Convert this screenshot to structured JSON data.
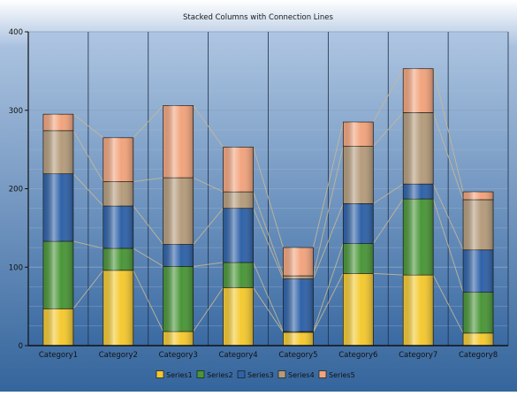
{
  "colors": {
    "background_top": "#ffffff",
    "background_mid": "#a9c1df",
    "background_bottom": "#34659c",
    "plot_top": "#aec6e2",
    "plot_bottom": "#3a6aa2",
    "series1": "#f4c930",
    "series2": "#4a9638",
    "series3": "#2f62a8",
    "series4": "#b59c7c",
    "series5": "#f2a47d",
    "connection_line": "#c8b993"
  },
  "chart_data": {
    "type": "bar",
    "stacked": true,
    "connection_lines": true,
    "title": "Stacked Columns with Connection Lines",
    "xlabel": "",
    "ylabel": "",
    "ylim": [
      0,
      400
    ],
    "yticks": [
      "0",
      "100",
      "200",
      "300",
      "400"
    ],
    "grid": true,
    "legend_position": "bottom",
    "categories": [
      "Category1",
      "Category2",
      "Category3",
      "Category4",
      "Category5",
      "Category6",
      "Category7",
      "Category8"
    ],
    "series": [
      {
        "name": "Series1",
        "values": [
          47,
          96,
          18,
          74,
          17,
          92,
          90,
          16
        ]
      },
      {
        "name": "Series2",
        "values": [
          86,
          28,
          83,
          32,
          1,
          38,
          97,
          52
        ]
      },
      {
        "name": "Series3",
        "values": [
          86,
          54,
          28,
          69,
          67,
          51,
          19,
          54
        ]
      },
      {
        "name": "Series4",
        "values": [
          55,
          31,
          85,
          21,
          4,
          73,
          91,
          64
        ]
      },
      {
        "name": "Series5",
        "values": [
          21,
          56,
          92,
          57,
          36,
          31,
          56,
          10
        ]
      }
    ]
  }
}
